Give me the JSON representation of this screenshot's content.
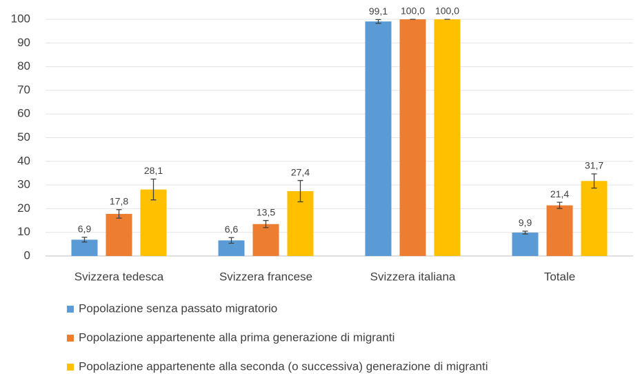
{
  "chart_data": {
    "type": "bar",
    "categories": [
      "Svizzera tedesca",
      "Svizzera francese",
      "Svizzera italiana",
      "Totale"
    ],
    "series": [
      {
        "name": "Popolazione senza passato migratorio",
        "color": "#5b9bd5",
        "values": [
          6.9,
          6.6,
          99.1,
          9.9
        ],
        "value_labels": [
          "6,9",
          "6,6",
          "99,1",
          "9,9"
        ],
        "errors": [
          1.0,
          1.2,
          0.8,
          0.6
        ]
      },
      {
        "name": "Popolazione appartenente alla prima generazione di migranti",
        "color": "#ed7d31",
        "values": [
          17.8,
          13.5,
          100.0,
          21.4
        ],
        "value_labels": [
          "17,8",
          "13,5",
          "100,0",
          "21,4"
        ],
        "errors": [
          1.8,
          1.5,
          0,
          1.3
        ]
      },
      {
        "name": "Popolazione appartenente alla seconda (o successiva) generazione di migranti",
        "color": "#ffc000",
        "values": [
          28.1,
          27.4,
          100.0,
          31.7
        ],
        "value_labels": [
          "28,1",
          "27,4",
          "100,0",
          "31,7"
        ],
        "errors": [
          4.4,
          4.5,
          0,
          3.0
        ]
      }
    ],
    "ylim": [
      0,
      100
    ],
    "yticks": [
      0,
      10,
      20,
      30,
      40,
      50,
      60,
      70,
      80,
      90,
      100
    ],
    "grid": true,
    "legend": "bottom"
  }
}
